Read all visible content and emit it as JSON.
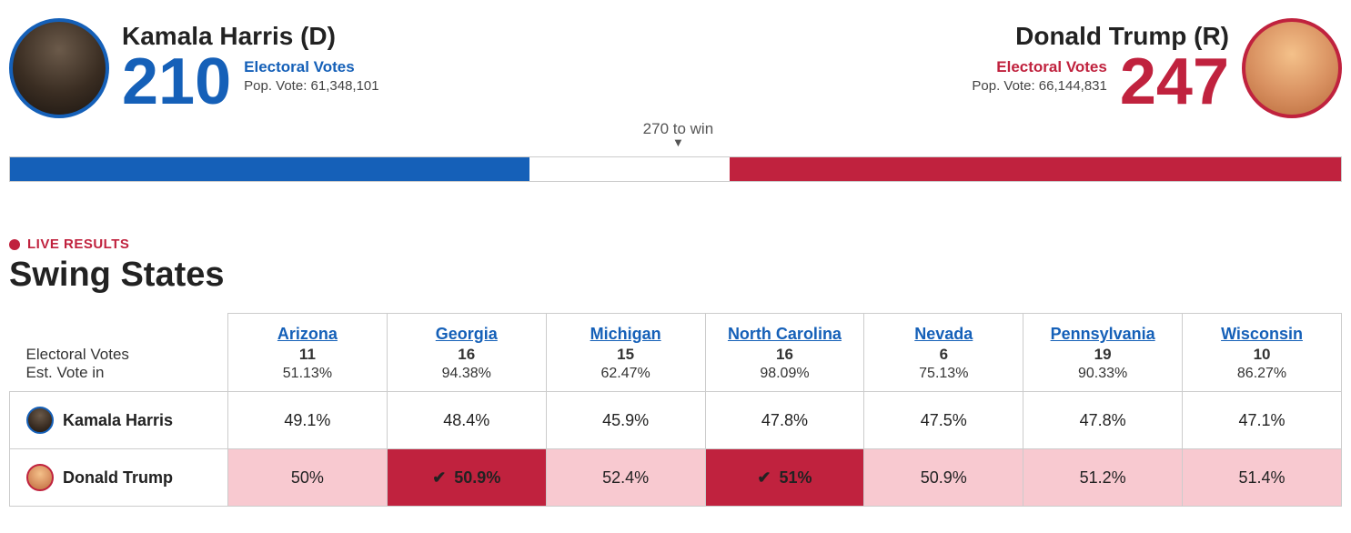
{
  "colors": {
    "dem": "#1560b8",
    "rep": "#c0223e",
    "lead_light": "#f8c9d0",
    "border": "#cccccc",
    "background": "#ffffff",
    "text": "#222222"
  },
  "candidates": {
    "dem": {
      "name": "Kamala Harris (D)",
      "short_name": "Kamala Harris",
      "electoral_label": "Electoral Votes",
      "electoral_votes": "210",
      "pop_vote": "Pop. Vote: 61,348,101"
    },
    "rep": {
      "name": "Donald Trump (R)",
      "short_name": "Donald Trump",
      "electoral_label": "Electoral Votes",
      "electoral_votes": "247",
      "pop_vote": "Pop. Vote: 66,144,831"
    }
  },
  "bar": {
    "target_label": "270 to win",
    "dem_pct": 39.0,
    "rep_pct": 45.9
  },
  "live_label": "LIVE RESULTS",
  "section_title": "Swing States",
  "table_header": {
    "ev_label": "Electoral Votes",
    "est_label": "Est. Vote in"
  },
  "states": [
    {
      "name": "Arizona",
      "ev": "11",
      "est": "51.13%",
      "dem": "49.1%",
      "rep": "50%",
      "called": false
    },
    {
      "name": "Georgia",
      "ev": "16",
      "est": "94.38%",
      "dem": "48.4%",
      "rep": "50.9%",
      "called": true
    },
    {
      "name": "Michigan",
      "ev": "15",
      "est": "62.47%",
      "dem": "45.9%",
      "rep": "52.4%",
      "called": false
    },
    {
      "name": "North Carolina",
      "ev": "16",
      "est": "98.09%",
      "dem": "47.8%",
      "rep": "51%",
      "called": true
    },
    {
      "name": "Nevada",
      "ev": "6",
      "est": "75.13%",
      "dem": "47.5%",
      "rep": "50.9%",
      "called": false
    },
    {
      "name": "Pennsylvania",
      "ev": "19",
      "est": "90.33%",
      "dem": "47.8%",
      "rep": "51.2%",
      "called": false
    },
    {
      "name": "Wisconsin",
      "ev": "10",
      "est": "86.27%",
      "dem": "47.1%",
      "rep": "51.4%",
      "called": false
    }
  ]
}
